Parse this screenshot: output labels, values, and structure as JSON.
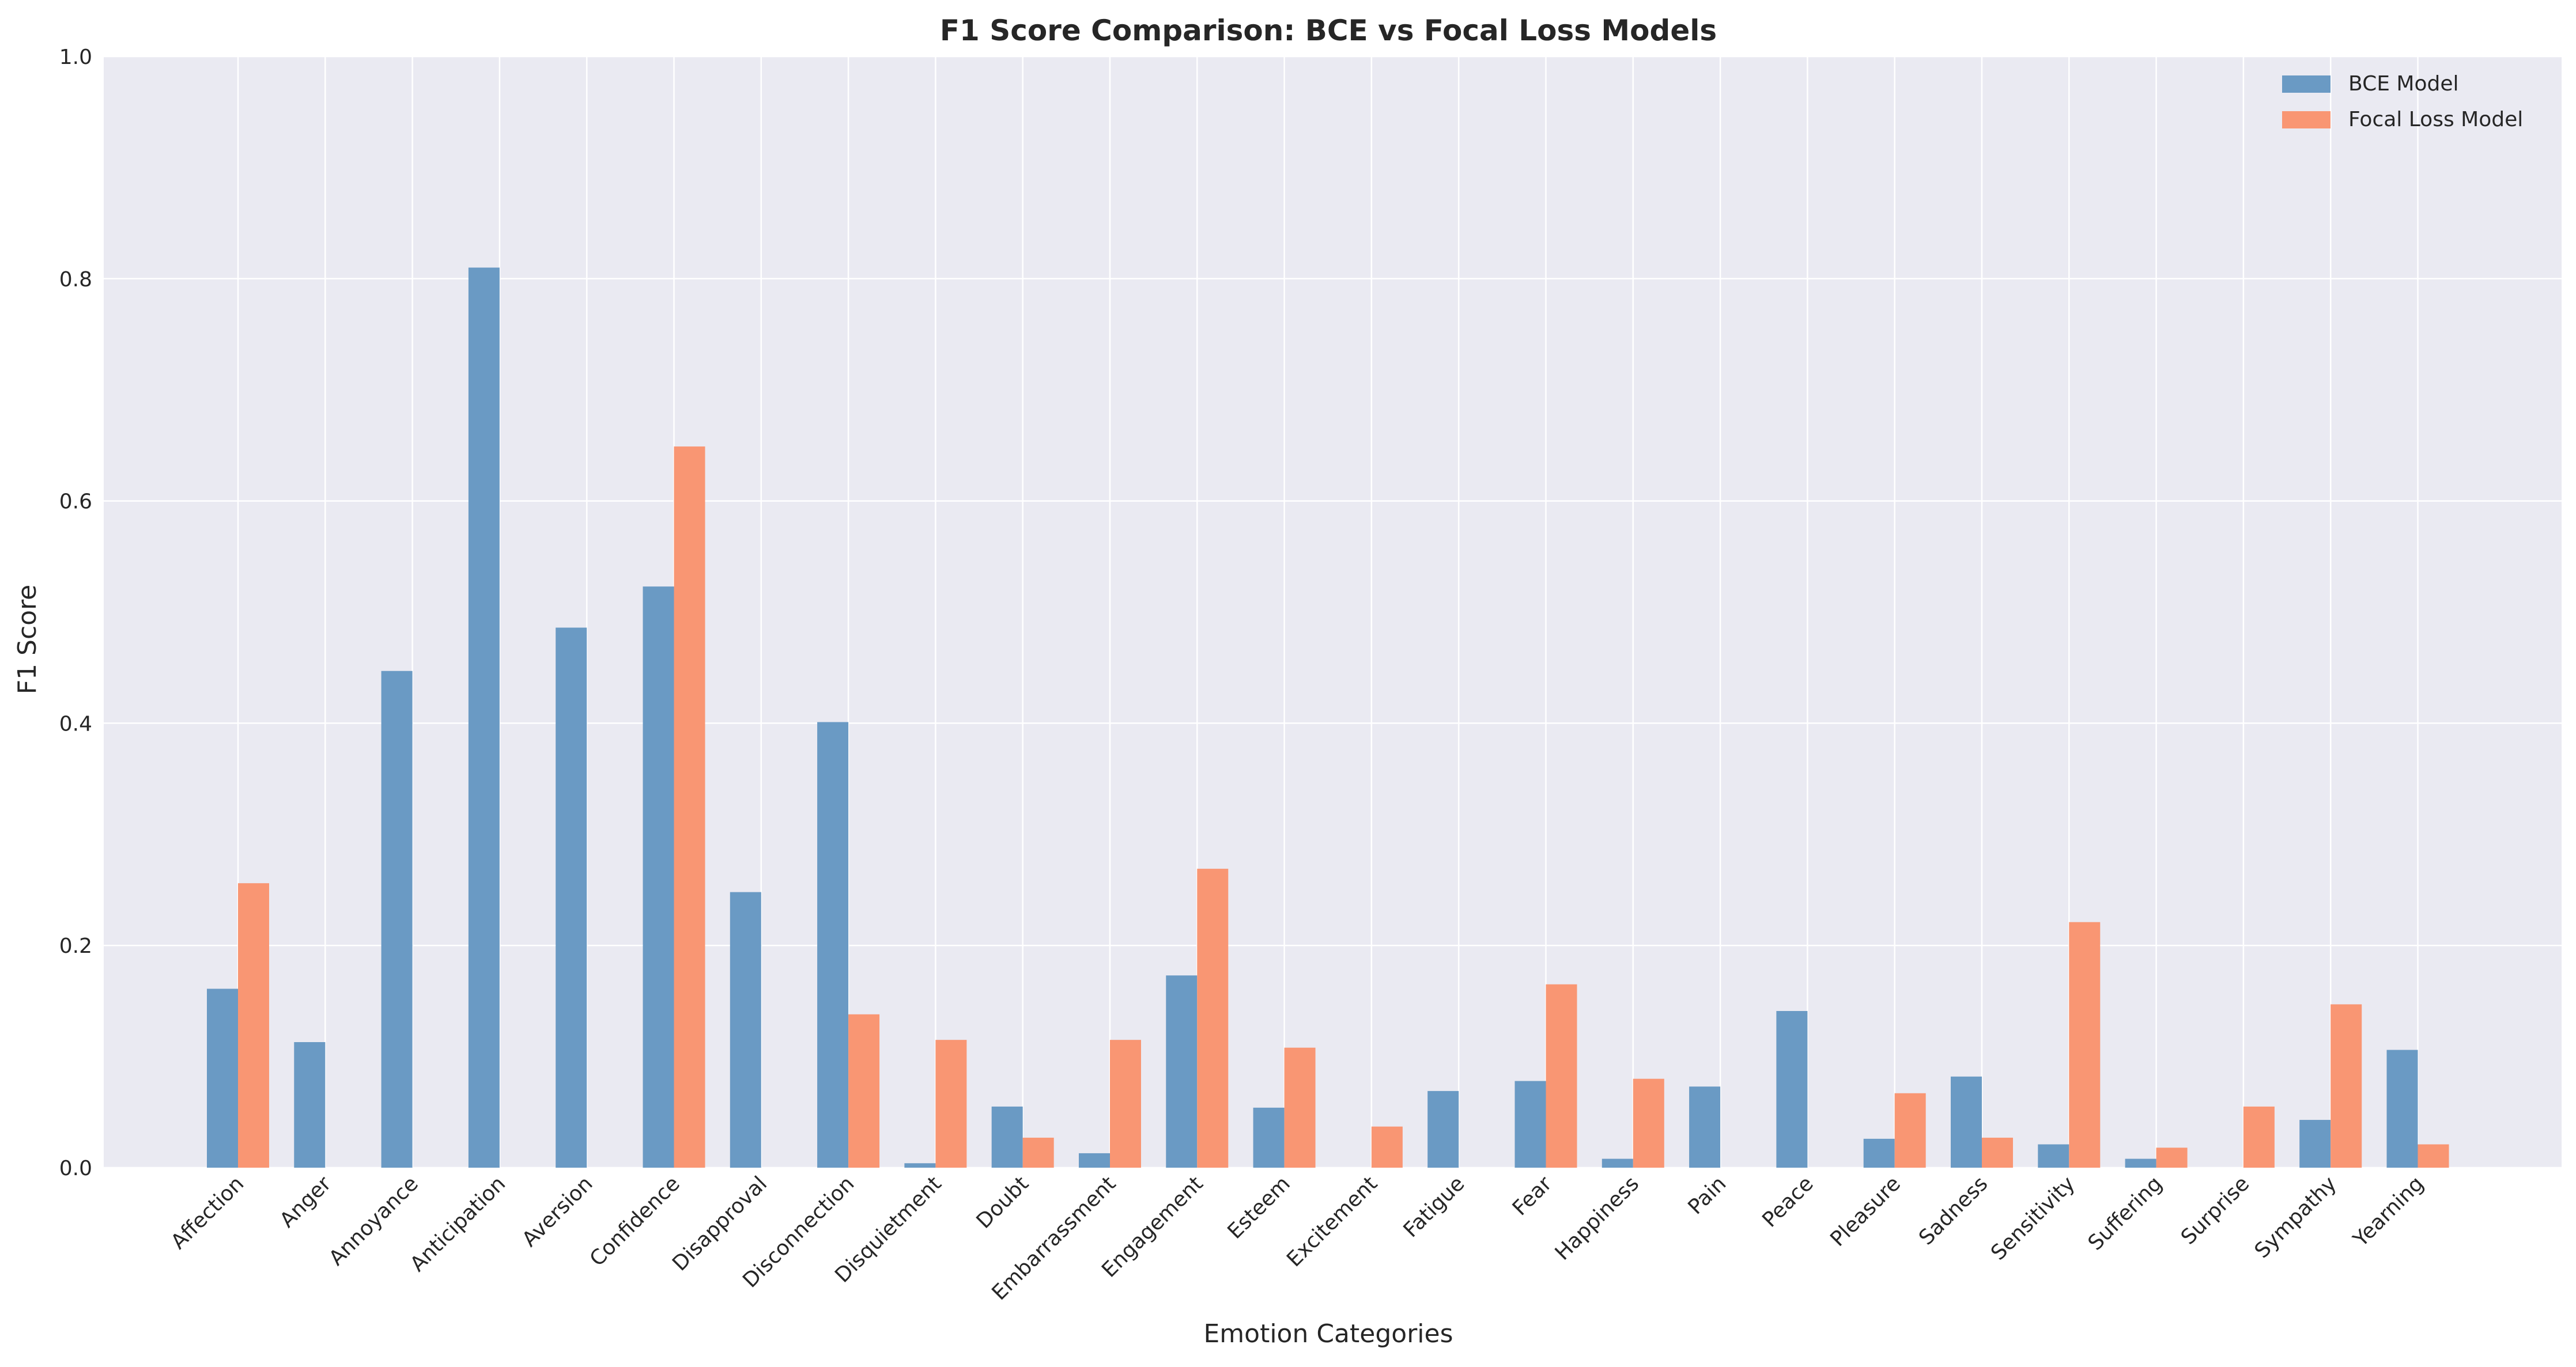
{
  "chart_data": {
    "type": "bar",
    "title": "F1 Score Comparison: BCE vs Focal Loss Models",
    "xlabel": "Emotion Categories",
    "ylabel": "F1 Score",
    "ylim": [
      0,
      1.0
    ],
    "yticks": [
      "0.0",
      "0.2",
      "0.4",
      "0.6",
      "0.8",
      "1.0"
    ],
    "grid": true,
    "legend_position": "top-right",
    "categories": [
      "Affection",
      "Anger",
      "Annoyance",
      "Anticipation",
      "Aversion",
      "Confidence",
      "Disapproval",
      "Disconnection",
      "Disquietment",
      "Doubt",
      "Embarrassment",
      "Engagement",
      "Esteem",
      "Excitement",
      "Fatigue",
      "Fear",
      "Happiness",
      "Pain",
      "Peace",
      "Pleasure",
      "Sadness",
      "Sensitivity",
      "Suffering",
      "Surprise",
      "Sympathy",
      "Yearning"
    ],
    "series": [
      {
        "name": "BCE Model",
        "color": "#6a9ac4",
        "values": [
          0.161,
          0.113,
          0.447,
          0.81,
          0.486,
          0.523,
          0.248,
          0.401,
          0.004,
          0.055,
          0.013,
          0.173,
          0.054,
          0.0,
          0.069,
          0.078,
          0.008,
          0.073,
          0.141,
          0.026,
          0.082,
          0.021,
          0.008,
          0.0,
          0.043,
          0.106
        ]
      },
      {
        "name": "Focal Loss Model",
        "color": "#f99673",
        "values": [
          0.256,
          0.0,
          0.0,
          0.0,
          0.0,
          0.649,
          0.0,
          0.138,
          0.115,
          0.027,
          0.115,
          0.269,
          0.108,
          0.037,
          0.0,
          0.165,
          0.08,
          0.0,
          0.0,
          0.067,
          0.027,
          0.221,
          0.018,
          0.055,
          0.147,
          0.021
        ]
      }
    ]
  }
}
